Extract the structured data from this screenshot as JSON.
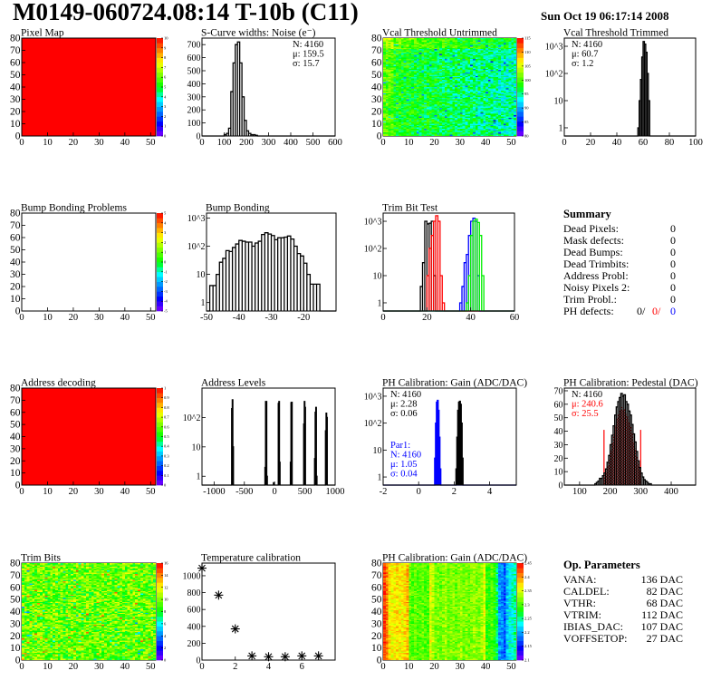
{
  "header": {
    "title": "M0149-060724.08:14 T-10b (C11)",
    "date": "Sun Oct 19 06:17:14 2008"
  },
  "palette_colors": [
    "#7f00ff",
    "#0000ff",
    "#0080ff",
    "#00ffff",
    "#00ff00",
    "#80ff00",
    "#ffff00",
    "#ff8000",
    "#ff0000"
  ],
  "panels": [
    {
      "id": "pixel_map",
      "title": "Pixel Map",
      "kind": "map",
      "fill": "uniform",
      "value": 10,
      "zmin": 0,
      "zmax": 10,
      "x": {
        "min": 0,
        "max": 52,
        "ticks": [
          0,
          10,
          20,
          30,
          40,
          50
        ]
      },
      "y": {
        "min": 0,
        "max": 80,
        "ticks": [
          0,
          10,
          20,
          30,
          40,
          50,
          60,
          70,
          80
        ]
      },
      "palette_labels": [
        "0",
        "1",
        "2",
        "3",
        "4",
        "5",
        "6",
        "7",
        "8",
        "9",
        "10"
      ]
    },
    {
      "id": "scurve",
      "title": "S-Curve widths: Noise (e⁻)",
      "kind": "hist",
      "x": {
        "min": 0,
        "max": 600,
        "ticks": [
          0,
          100,
          200,
          300,
          400,
          500,
          600
        ]
      },
      "y": {
        "min": 0,
        "max": 750,
        "ticks": [
          0,
          100,
          200,
          300,
          400,
          500,
          600,
          700
        ]
      },
      "series": [
        {
          "color": "#000000",
          "lo": 100,
          "width": 10,
          "counts": [
            10,
            20,
            60,
            340,
            560,
            700,
            720,
            560,
            300,
            120,
            40,
            20,
            10,
            10,
            5
          ]
        }
      ],
      "stats": {
        "align": "right",
        "lines": [
          {
            "text": "N: 4160",
            "color": "#000000"
          },
          {
            "text": "μ: 159.5",
            "color": "#000000"
          },
          {
            "text": "σ: 15.7",
            "color": "#000000"
          }
        ]
      }
    },
    {
      "id": "vcal_untrimmed",
      "title": "Vcal Threshold Untrimmed",
      "kind": "map",
      "fill": "vcal",
      "zmin": 78,
      "zmax": 117.5,
      "x": {
        "min": 0,
        "max": 52,
        "ticks": [
          0,
          10,
          20,
          30,
          40,
          50
        ]
      },
      "y": {
        "min": 0,
        "max": 80,
        "ticks": [
          0,
          10,
          20,
          30,
          40,
          50,
          60,
          70,
          80
        ]
      },
      "palette_labels": [
        "80",
        "85",
        "90",
        "95",
        "100",
        "105",
        "110",
        "115"
      ]
    },
    {
      "id": "vcal_trimmed",
      "title": "Vcal Threshold Trimmed",
      "kind": "hist",
      "x": {
        "min": 0,
        "max": 100,
        "ticks": [
          0,
          20,
          40,
          60,
          80,
          100
        ]
      },
      "y": {
        "min": 0.5,
        "max": 2000,
        "log": true,
        "ticks": [
          1,
          10,
          100,
          1000
        ],
        "labels": [
          "1",
          "10",
          "10^2",
          "10^3"
        ]
      },
      "series": [
        {
          "color": "#000000",
          "lo": 56,
          "width": 1,
          "counts": [
            1,
            10,
            60,
            400,
            1500,
            1200,
            600,
            100,
            10
          ]
        }
      ],
      "stats": {
        "align": "left",
        "lines": [
          {
            "text": "N: 4160",
            "color": "#000000"
          },
          {
            "text": "μ: 60.7",
            "color": "#000000"
          },
          {
            "text": "σ:  1.2",
            "color": "#000000"
          }
        ]
      }
    },
    {
      "id": "bump_problems",
      "title": "Bump Bonding Problems",
      "kind": "map",
      "fill": "empty",
      "zmin": -5,
      "zmax": 5,
      "x": {
        "min": 0,
        "max": 52,
        "ticks": [
          0,
          10,
          20,
          30,
          40,
          50
        ]
      },
      "y": {
        "min": 0,
        "max": 80,
        "ticks": [
          0,
          10,
          20,
          30,
          40,
          50,
          60,
          70,
          80
        ]
      },
      "palette_labels": [
        "-5",
        "-4",
        "-3",
        "-2",
        "-1",
        "0",
        "1",
        "2",
        "3",
        "4",
        "5"
      ]
    },
    {
      "id": "bump_bonding",
      "title": "Bump Bonding",
      "kind": "hist",
      "x": {
        "min": -50,
        "max": -10,
        "ticks": [
          -50,
          -40,
          -30,
          -20
        ]
      },
      "y": {
        "min": 0.5,
        "max": 1500,
        "log": true,
        "ticks": [
          1,
          10,
          100,
          1000
        ],
        "labels": [
          "1",
          "10",
          "10^2",
          "10^3"
        ]
      },
      "series": [
        {
          "color": "#000000",
          "lo": -49,
          "width": 1,
          "counts": [
            4,
            4,
            10,
            27,
            37,
            70,
            65,
            90,
            120,
            160,
            150,
            140,
            140,
            100,
            130,
            150,
            260,
            300,
            270,
            240,
            170,
            200,
            200,
            210,
            230,
            180,
            100,
            55,
            45,
            25,
            10,
            4.5,
            4.5,
            4.5
          ]
        }
      ]
    },
    {
      "id": "trim_bit_test",
      "title": "Trim Bit Test",
      "kind": "hist",
      "x": {
        "min": 0,
        "max": 60,
        "ticks": [
          0,
          20,
          40,
          60
        ]
      },
      "y": {
        "min": 0.5,
        "max": 2000,
        "log": true,
        "ticks": [
          1,
          10,
          100,
          1000
        ],
        "labels": [
          "1",
          "10",
          "10^2",
          "10^3"
        ]
      },
      "series": [
        {
          "color": "#000000",
          "lo": 17,
          "width": 1,
          "counts": [
            4,
            30,
            1000,
            800,
            850,
            1000,
            10
          ]
        },
        {
          "color": "#ff0000",
          "lo": 20,
          "width": 1,
          "counts": [
            10,
            100,
            300,
            1000,
            1600,
            1000,
            10,
            1
          ]
        },
        {
          "color": "#0000ff",
          "lo": 35,
          "width": 1,
          "counts": [
            1,
            4,
            30,
            60,
            300,
            1000,
            1300,
            1000,
            10
          ]
        },
        {
          "color": "#00ee00",
          "lo": 38,
          "width": 1,
          "counts": [
            1,
            10,
            300,
            1000,
            1200,
            900,
            300,
            10
          ]
        }
      ]
    },
    {
      "id": "address_decoding",
      "title": "Address decoding",
      "kind": "map",
      "fill": "uniform",
      "value": 1,
      "zmin": 0,
      "zmax": 1,
      "x": {
        "min": 0,
        "max": 52,
        "ticks": [
          0,
          10,
          20,
          30,
          40,
          50
        ]
      },
      "y": {
        "min": 0,
        "max": 80,
        "ticks": [
          0,
          10,
          20,
          30,
          40,
          50,
          60,
          70,
          80
        ]
      },
      "palette_labels": [
        "0",
        "0.1",
        "0.2",
        "0.3",
        "0.4",
        "0.5",
        "0.6",
        "0.7",
        "0.8",
        "0.9",
        "1"
      ]
    },
    {
      "id": "address_levels",
      "title": "Address Levels",
      "kind": "hist",
      "x": {
        "min": -1200,
        "max": 1000,
        "ticks": [
          -1000,
          -500,
          0,
          500,
          1000
        ]
      },
      "y": {
        "min": 0.5,
        "max": 1000,
        "log": true,
        "ticks": [
          1,
          10,
          100
        ],
        "labels": [
          "1",
          "10",
          "10^2"
        ]
      },
      "series": [
        {
          "color": "#000000",
          "width": 10,
          "bins": [
            [
              -710,
              200
            ],
            [
              -700,
              400
            ],
            [
              -690,
              10
            ],
            [
              -160,
              2
            ],
            [
              -150,
              350
            ],
            [
              -140,
              350
            ],
            [
              -130,
              1
            ],
            [
              -20,
              0.6
            ],
            [
              60,
              300
            ],
            [
              70,
              350
            ],
            [
              80,
              3
            ],
            [
              260,
              3
            ],
            [
              270,
              320
            ],
            [
              280,
              330
            ],
            [
              480,
              60
            ],
            [
              490,
              350
            ],
            [
              500,
              220
            ],
            [
              660,
              4
            ],
            [
              670,
              150
            ],
            [
              680,
              220
            ],
            [
              690,
              1
            ],
            [
              840,
              35
            ],
            [
              850,
              140
            ],
            [
              860,
              100
            ]
          ]
        }
      ]
    },
    {
      "id": "ph_gain",
      "title": "PH Calibration: Gain (ADC/DAC)",
      "kind": "hist",
      "x": {
        "min": -2,
        "max": 5.5,
        "ticks": [
          -2,
          0,
          2,
          4
        ]
      },
      "y": {
        "min": 0.5,
        "max": 2000,
        "log": true,
        "ticks": [
          1,
          10,
          100,
          1000
        ],
        "labels": [
          "1",
          "10",
          "10^2",
          "10^3"
        ]
      },
      "series": [
        {
          "color": "#0000ff",
          "lo": 0.9,
          "width": 0.05,
          "counts": [
            5,
            100,
            600,
            700,
            300,
            30,
            2
          ]
        },
        {
          "color": "#000000",
          "lo": 2.1,
          "width": 0.05,
          "counts": [
            2,
            30,
            300,
            600,
            650,
            500,
            100,
            5
          ]
        }
      ],
      "stats": {
        "align": "left",
        "lines": [
          {
            "text": "N: 4160",
            "color": "#000000"
          },
          {
            "text": "μ: 2.28",
            "color": "#000000"
          },
          {
            "text": "σ: 0.06",
            "color": "#000000"
          }
        ]
      },
      "stats2": {
        "lines": [
          {
            "text": "Par1:",
            "color": "#0000ff"
          },
          {
            "text": "N: 4160",
            "color": "#0000ff"
          },
          {
            "text": "μ: 1.05",
            "color": "#0000ff"
          },
          {
            "text": "σ: 0.04",
            "color": "#0000ff"
          }
        ]
      }
    },
    {
      "id": "ph_pedestal",
      "title": "PH Calibration: Pedestal (DAC)",
      "kind": "hist",
      "x": {
        "min": 50,
        "max": 480,
        "ticks": [
          100,
          200,
          300,
          400
        ]
      },
      "y": {
        "min": 0,
        "max": 72,
        "ticks": [
          0,
          10,
          20,
          30,
          40,
          50,
          60,
          70
        ]
      },
      "series": [
        {
          "color": "#000000",
          "lo": 150,
          "width": 5,
          "counts": [
            1,
            2,
            3,
            5,
            5,
            7,
            9,
            12,
            17,
            22,
            30,
            37,
            44,
            52,
            58,
            62,
            65,
            68,
            66,
            67,
            62,
            60,
            55,
            52,
            45,
            38,
            32,
            25,
            18,
            13,
            9,
            6,
            4,
            3,
            2,
            1,
            1,
            0
          ]
        }
      ],
      "red_range": [
        180,
        300
      ],
      "red_line_height": 41,
      "stats": {
        "align": "left",
        "lines": [
          {
            "text": "N: 4160",
            "color": "#000000"
          },
          {
            "text": "μ: 240.6",
            "color": "#ff0000"
          },
          {
            "text": "σ: 25.5",
            "color": "#ff0000"
          }
        ]
      }
    },
    {
      "id": "trim_bits",
      "title": "Trim Bits",
      "kind": "map",
      "fill": "trim",
      "zmin": 0,
      "zmax": 16,
      "x": {
        "min": 0,
        "max": 52,
        "ticks": [
          0,
          10,
          20,
          30,
          40,
          50
        ]
      },
      "y": {
        "min": 0,
        "max": 80,
        "ticks": [
          0,
          10,
          20,
          30,
          40,
          50,
          60,
          70,
          80
        ]
      },
      "palette_labels": [
        "0",
        "2",
        "4",
        "6",
        "8",
        "10",
        "12",
        "14",
        "16"
      ]
    },
    {
      "id": "temperature",
      "title": "Temperature calibration",
      "kind": "scatter",
      "x": {
        "min": 0,
        "max": 8,
        "ticks": [
          0,
          2,
          4,
          6
        ]
      },
      "y": {
        "min": 0,
        "max": 1150,
        "ticks": [
          0,
          200,
          400,
          600,
          800,
          1000
        ]
      },
      "points": [
        [
          0,
          1090
        ],
        [
          1,
          770
        ],
        [
          2,
          370
        ],
        [
          3,
          50
        ],
        [
          4,
          40
        ],
        [
          5,
          40
        ],
        [
          6,
          50
        ],
        [
          7,
          50
        ]
      ]
    },
    {
      "id": "ph_gain_map",
      "title": "PH Calibration: Gain (ADC/DAC)",
      "kind": "map",
      "fill": "gain",
      "zmin": 2.07,
      "zmax": 2.47,
      "x": {
        "min": 0,
        "max": 52,
        "ticks": [
          0,
          10,
          20,
          30,
          40,
          50
        ]
      },
      "y": {
        "min": 0,
        "max": 80,
        "ticks": [
          0,
          10,
          20,
          30,
          40,
          50,
          60,
          70,
          80
        ]
      },
      "palette_labels": [
        "2.1",
        "2.15",
        "2.2",
        "2.25",
        "2.3",
        "2.35",
        "2.4",
        "2.45"
      ],
      "column_means": [
        2.45,
        2.42,
        2.38,
        2.37,
        2.37,
        2.38,
        2.37,
        2.37,
        2.38,
        2.4,
        2.31,
        2.3,
        2.31,
        2.3,
        2.3,
        2.31,
        2.3,
        2.3,
        2.36,
        2.34,
        2.31,
        2.32,
        2.31,
        2.32,
        2.33,
        2.31,
        2.32,
        2.32,
        2.31,
        2.32,
        2.33,
        2.31,
        2.32,
        2.31,
        2.32,
        2.33,
        2.32,
        2.32,
        2.33,
        2.36,
        2.29,
        2.29,
        2.3,
        2.28,
        2.25,
        2.18,
        2.17,
        2.15,
        2.2,
        2.22,
        2.23,
        2.24
      ]
    }
  ],
  "summary": {
    "title": "Summary",
    "rows": [
      {
        "label": "Dead Pixels:",
        "value": "0"
      },
      {
        "label": "Mask defects:",
        "value": "0"
      },
      {
        "label": "Dead Bumps:",
        "value": "0"
      },
      {
        "label": "Dead Trimbits:",
        "value": "0"
      },
      {
        "label": "Address Probl:",
        "value": "0"
      },
      {
        "label": "Noisy Pixels 2:",
        "value": "0"
      },
      {
        "label": "Trim Probl.:",
        "value": "0"
      }
    ],
    "ph_defects": {
      "label": "PH defects:",
      "v1": "0/",
      "v2": "0/",
      "v3": "0",
      "c2": "#ff0000",
      "c3": "#0000ff"
    }
  },
  "op_parameters": {
    "title": "Op. Parameters",
    "rows": [
      {
        "label": "VANA:",
        "value": "136 DAC"
      },
      {
        "label": "CALDEL:",
        "value": "82 DAC"
      },
      {
        "label": "VTHR:",
        "value": "68 DAC"
      },
      {
        "label": "VTRIM:",
        "value": "112 DAC"
      },
      {
        "label": "IBIAS_DAC:",
        "value": "107 DAC"
      },
      {
        "label": "VOFFSETOP:",
        "value": "27 DAC"
      }
    ]
  }
}
